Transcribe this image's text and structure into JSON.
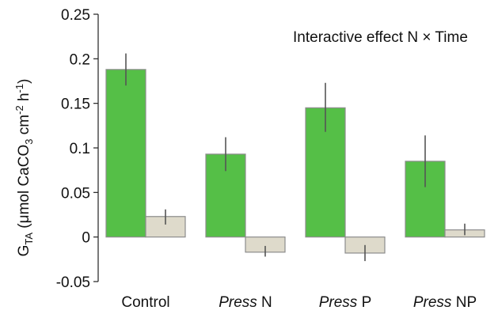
{
  "chart_data": {
    "type": "bar",
    "annotation": "Interactive effect N × Time",
    "ylabel": {
      "prefix": "G",
      "prefix_sub": "TA",
      "open": " (μmol CaCO",
      "sub3": "3",
      "mid": " cm",
      "sup1": "-2",
      "mid2": " h",
      "sup2": "-1",
      "close": ")"
    },
    "categories": [
      {
        "italic": "",
        "rest": "Control"
      },
      {
        "italic": "Press",
        "rest": " N"
      },
      {
        "italic": "Press",
        "rest": " P"
      },
      {
        "italic": "Press",
        "rest": " NP"
      }
    ],
    "ylim": [
      -0.05,
      0.25
    ],
    "yticks": [
      -0.05,
      0,
      0.05,
      0.1,
      0.15,
      0.2,
      0.25
    ],
    "ytick_labels": [
      "-0.05",
      "0",
      "0.05",
      "0.1",
      "0.15",
      "0.2",
      "0.25"
    ],
    "series": [
      {
        "color": "#55bf47",
        "values": [
          0.188,
          0.093,
          0.145,
          0.085
        ],
        "err_low": [
          0.17,
          0.074,
          0.118,
          0.056
        ],
        "err_high": [
          0.206,
          0.112,
          0.173,
          0.114
        ]
      },
      {
        "color": "#dedacb",
        "values": [
          0.023,
          -0.017,
          -0.018,
          0.008
        ],
        "err_low": [
          0.014,
          -0.022,
          -0.027,
          0.002
        ],
        "err_high": [
          0.031,
          -0.01,
          -0.009,
          0.015
        ]
      }
    ]
  }
}
